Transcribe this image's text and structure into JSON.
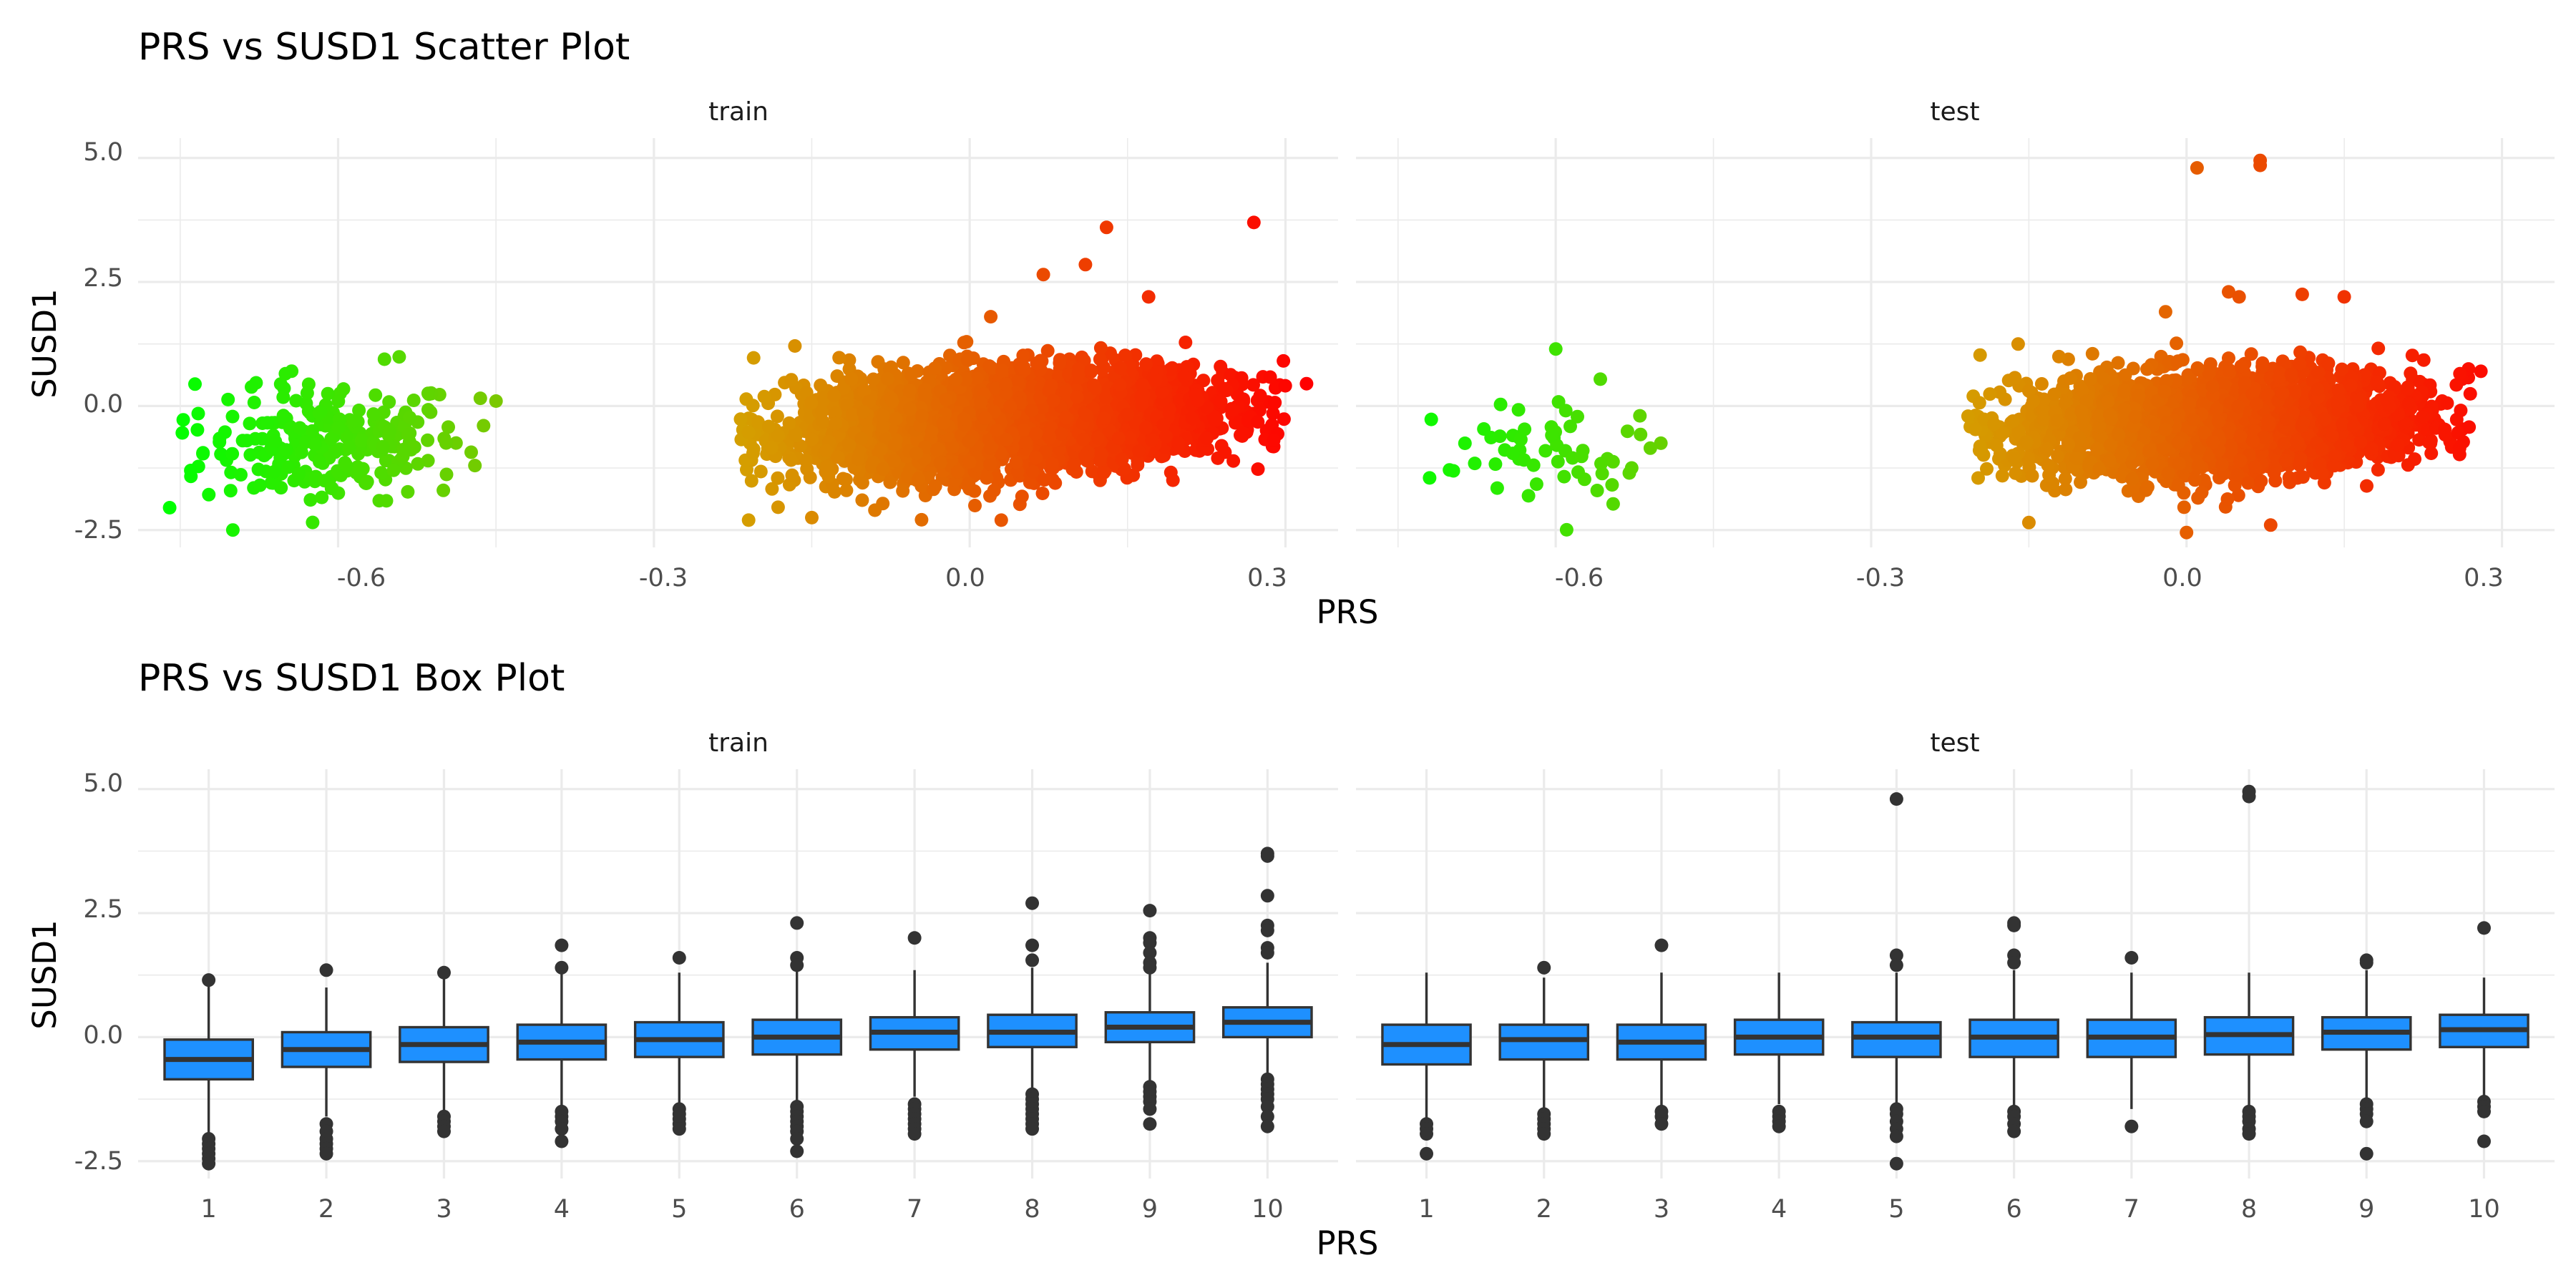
{
  "chart_data": [
    {
      "type": "scatter",
      "title": "PRS vs SUSD1 Scatter Plot",
      "xlabel": "PRS",
      "ylabel": "SUSD1",
      "xlim": [
        -0.79,
        0.35
      ],
      "ylim": [
        -2.85,
        5.4
      ],
      "x_ticks": [
        "-0.6",
        "-0.3",
        "0.0",
        "0.3"
      ],
      "x_tick_values": [
        -0.6,
        -0.3,
        0.0,
        0.3
      ],
      "y_ticks": [
        "5.0",
        "2.5",
        "0.0",
        "-2.5"
      ],
      "y_tick_values": [
        5.0,
        2.5,
        0.0,
        -2.5
      ],
      "color_gradient": [
        "#00ff00",
        "#d4a000",
        "#ff0000"
      ],
      "grid": true,
      "legend": "none",
      "panels": [
        {
          "label": "train",
          "clusters": [
            {
              "x_range": [
                -0.76,
                -0.45
              ],
              "mean_y": -0.75,
              "sd_y": 0.6,
              "slope": 2.0,
              "n": 240
            },
            {
              "x_range": [
                -0.22,
                0.3
              ],
              "mean_y": -0.3,
              "sd_y": 0.5,
              "slope": 2.2,
              "n": 3200
            }
          ],
          "highlights": [
            [
              -0.45,
              0.1
            ],
            [
              -0.76,
              -2.05
            ],
            [
              -0.74,
              -1.3
            ],
            [
              -0.7,
              -2.5
            ],
            [
              -0.65,
              0.65
            ],
            [
              -0.5,
              -1.7
            ],
            [
              -0.47,
              -1.2
            ],
            [
              0.13,
              3.6
            ],
            [
              0.27,
              3.7
            ],
            [
              0.32,
              0.45
            ],
            [
              0.26,
              -0.55
            ],
            [
              0.11,
              2.85
            ],
            [
              0.17,
              2.2
            ],
            [
              0.07,
              2.65
            ],
            [
              0.02,
              1.8
            ],
            [
              -0.21,
              -2.3
            ],
            [
              -0.15,
              -2.25
            ],
            [
              0.03,
              -2.3
            ],
            [
              -0.09,
              -2.1
            ]
          ]
        },
        {
          "label": "test",
          "clusters": [
            {
              "x_range": [
                -0.73,
                -0.49
              ],
              "mean_y": -0.95,
              "sd_y": 0.65,
              "slope": 1.5,
              "n": 55
            },
            {
              "x_range": [
                -0.21,
                0.27
              ],
              "mean_y": -0.35,
              "sd_y": 0.5,
              "slope": 1.6,
              "n": 2600
            }
          ],
          "highlights": [
            [
              0.01,
              4.8
            ],
            [
              0.07,
              4.85
            ],
            [
              0.07,
              4.95
            ],
            [
              -0.6,
              1.15
            ],
            [
              -0.5,
              -0.75
            ],
            [
              -0.51,
              -0.85
            ],
            [
              -0.53,
              -1.35
            ],
            [
              -0.72,
              -1.45
            ],
            [
              0.04,
              2.3
            ],
            [
              0.05,
              2.2
            ],
            [
              0.11,
              2.25
            ],
            [
              0.15,
              2.2
            ],
            [
              -0.02,
              1.9
            ],
            [
              0.28,
              0.7
            ],
            [
              0.26,
              0.65
            ],
            [
              0.0,
              -2.55
            ],
            [
              0.08,
              -2.4
            ],
            [
              -0.15,
              -2.35
            ]
          ]
        }
      ]
    },
    {
      "type": "box",
      "title": "PRS vs SUSD1 Box Plot",
      "xlabel": "PRS",
      "ylabel": "SUSD1",
      "categories": [
        "1",
        "2",
        "3",
        "4",
        "5",
        "6",
        "7",
        "8",
        "9",
        "10"
      ],
      "ylim": [
        -2.85,
        5.4
      ],
      "y_ticks": [
        "5.0",
        "2.5",
        "0.0",
        "-2.5"
      ],
      "y_tick_values": [
        5.0,
        2.5,
        0.0,
        -2.5
      ],
      "box_color": "#1e90ff",
      "grid": true,
      "panels": [
        {
          "label": "train",
          "boxes": [
            {
              "q1": -0.85,
              "median": -0.45,
              "q3": -0.05,
              "whisker_low": -1.95,
              "whisker_high": 1.1,
              "outliers": [
                1.15,
                -2.05,
                -2.15,
                -2.25,
                -2.35,
                -2.45,
                -2.55
              ]
            },
            {
              "q1": -0.6,
              "median": -0.25,
              "q3": 0.1,
              "whisker_low": -1.6,
              "whisker_high": 1.0,
              "outliers": [
                1.35,
                -1.75,
                -1.9,
                -2.05,
                -2.15,
                -2.25,
                -2.35
              ]
            },
            {
              "q1": -0.5,
              "median": -0.15,
              "q3": 0.2,
              "whisker_low": -1.5,
              "whisker_high": 1.25,
              "outliers": [
                1.3,
                -1.6,
                -1.7,
                -1.8,
                -1.9
              ]
            },
            {
              "q1": -0.45,
              "median": -0.1,
              "q3": 0.25,
              "whisker_low": -1.45,
              "whisker_high": 1.3,
              "outliers": [
                1.85,
                1.4,
                -1.5,
                -1.6,
                -1.7,
                -1.85,
                -2.1
              ]
            },
            {
              "q1": -0.4,
              "median": -0.05,
              "q3": 0.3,
              "whisker_low": -1.4,
              "whisker_high": 1.3,
              "outliers": [
                1.6,
                -1.45,
                -1.55,
                -1.65,
                -1.75,
                -1.85
              ]
            },
            {
              "q1": -0.35,
              "median": 0.0,
              "q3": 0.35,
              "whisker_low": -1.35,
              "whisker_high": 1.35,
              "outliers": [
                2.3,
                1.6,
                1.45,
                -1.4,
                -1.5,
                -1.6,
                -1.7,
                -1.8,
                -1.9,
                -2.05,
                -2.3
              ]
            },
            {
              "q1": -0.25,
              "median": 0.1,
              "q3": 0.4,
              "whisker_low": -1.2,
              "whisker_high": 1.35,
              "outliers": [
                2.0,
                -1.35,
                -1.45,
                -1.55,
                -1.65,
                -1.75,
                -1.85,
                -1.95
              ]
            },
            {
              "q1": -0.2,
              "median": 0.1,
              "q3": 0.45,
              "whisker_low": -1.1,
              "whisker_high": 1.4,
              "outliers": [
                2.7,
                1.85,
                1.55,
                -1.15,
                -1.25,
                -1.35,
                -1.45,
                -1.55,
                -1.65,
                -1.75,
                -1.85
              ]
            },
            {
              "q1": -0.1,
              "median": 0.2,
              "q3": 0.5,
              "whisker_low": -0.95,
              "whisker_high": 1.35,
              "outliers": [
                2.55,
                2.0,
                1.9,
                1.7,
                1.5,
                1.4,
                -1.0,
                -1.1,
                -1.2,
                -1.3,
                -1.45,
                -1.75
              ]
            },
            {
              "q1": 0.0,
              "median": 0.3,
              "q3": 0.6,
              "whisker_low": -0.75,
              "whisker_high": 1.5,
              "outliers": [
                3.65,
                3.7,
                2.85,
                2.25,
                2.15,
                1.8,
                1.7,
                -0.85,
                -0.95,
                -1.05,
                -1.15,
                -1.25,
                -1.4,
                -1.6,
                -1.8
              ]
            }
          ]
        },
        {
          "label": "test",
          "boxes": [
            {
              "q1": -0.55,
              "median": -0.15,
              "q3": 0.25,
              "whisker_low": -1.65,
              "whisker_high": 1.3,
              "outliers": [
                -1.75,
                -1.85,
                -1.95,
                -2.35
              ]
            },
            {
              "q1": -0.45,
              "median": -0.05,
              "q3": 0.25,
              "whisker_low": -1.45,
              "whisker_high": 1.2,
              "outliers": [
                1.4,
                -1.55,
                -1.65,
                -1.75,
                -1.85,
                -1.95
              ]
            },
            {
              "q1": -0.45,
              "median": -0.1,
              "q3": 0.25,
              "whisker_low": -1.4,
              "whisker_high": 1.3,
              "outliers": [
                1.85,
                -1.5,
                -1.6,
                -1.75
              ]
            },
            {
              "q1": -0.35,
              "median": 0.0,
              "q3": 0.35,
              "whisker_low": -1.35,
              "whisker_high": 1.3,
              "outliers": [
                -1.5,
                -1.6,
                -1.7,
                -1.8
              ]
            },
            {
              "q1": -0.4,
              "median": 0.0,
              "q3": 0.3,
              "whisker_low": -1.35,
              "whisker_high": 1.3,
              "outliers": [
                4.8,
                1.65,
                1.45,
                -1.45,
                -1.55,
                -1.7,
                -1.85,
                -2.0,
                -2.55
              ]
            },
            {
              "q1": -0.4,
              "median": 0.0,
              "q3": 0.35,
              "whisker_low": -1.4,
              "whisker_high": 1.35,
              "outliers": [
                2.3,
                2.25,
                1.65,
                1.5,
                -1.5,
                -1.6,
                -1.75,
                -1.9
              ]
            },
            {
              "q1": -0.4,
              "median": 0.0,
              "q3": 0.35,
              "whisker_low": -1.45,
              "whisker_high": 1.3,
              "outliers": [
                1.6,
                -1.8
              ]
            },
            {
              "q1": -0.35,
              "median": 0.05,
              "q3": 0.4,
              "whisker_low": -1.4,
              "whisker_high": 1.3,
              "outliers": [
                4.85,
                4.95,
                -1.5,
                -1.6,
                -1.7,
                -1.85,
                -1.95
              ]
            },
            {
              "q1": -0.25,
              "median": 0.1,
              "q3": 0.4,
              "whisker_low": -1.3,
              "whisker_high": 1.35,
              "outliers": [
                1.55,
                1.5,
                -1.35,
                -1.45,
                -1.55,
                -1.7,
                -2.35
              ]
            },
            {
              "q1": -0.2,
              "median": 0.15,
              "q3": 0.45,
              "whisker_low": -1.2,
              "whisker_high": 1.2,
              "outliers": [
                2.2,
                -1.3,
                -1.4,
                -1.5,
                -2.1
              ]
            }
          ]
        }
      ]
    }
  ]
}
